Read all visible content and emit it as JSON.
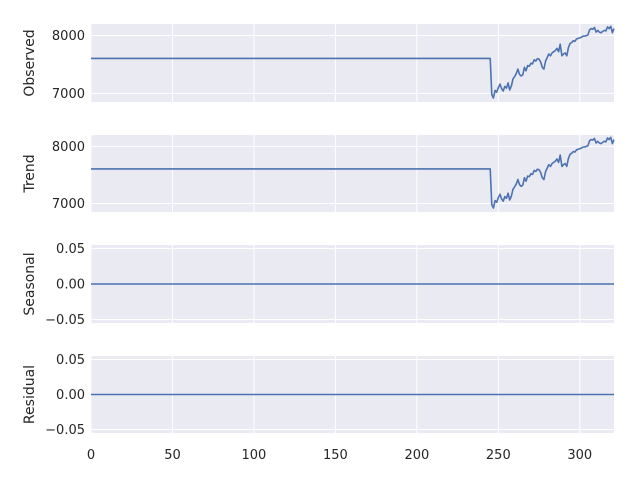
{
  "chart_data": {
    "type": "line",
    "style": {
      "panel_bg": "#eaeaf2",
      "grid": "#ffffff",
      "line": "#4c72b0",
      "text": "#262626"
    },
    "xlim": [
      0,
      321
    ],
    "x_ticks": [
      0,
      50,
      100,
      150,
      200,
      250,
      300
    ],
    "panels": [
      {
        "ylabel": "Observed",
        "ylim": [
          6850,
          8200
        ],
        "y_ticks": [
          7000,
          8000
        ],
        "series": {
          "x": [
            0,
            245,
            246,
            247,
            248,
            249,
            250,
            251,
            252,
            253,
            254,
            255,
            256,
            257,
            258,
            259,
            260,
            261,
            262,
            263,
            264,
            265,
            266,
            267,
            268,
            269,
            270,
            271,
            272,
            273,
            274,
            275,
            276,
            277,
            278,
            279,
            280,
            281,
            282,
            283,
            284,
            285,
            286,
            287,
            288,
            289,
            290,
            291,
            292,
            293,
            294,
            295,
            296,
            297,
            298,
            299,
            300,
            301,
            302,
            303,
            304,
            305,
            306,
            307,
            308,
            309,
            310,
            311,
            312,
            313,
            314,
            315,
            316,
            317,
            318,
            319,
            320,
            321
          ],
          "y": [
            7605,
            7605,
            6980,
            6920,
            7050,
            7020,
            7100,
            7160,
            7080,
            7040,
            7120,
            7090,
            7180,
            7060,
            7130,
            7250,
            7290,
            7340,
            7420,
            7330,
            7300,
            7320,
            7450,
            7390,
            7480,
            7470,
            7520,
            7510,
            7580,
            7560,
            7600,
            7590,
            7540,
            7450,
            7420,
            7560,
            7620,
            7680,
            7650,
            7700,
            7720,
            7740,
            7780,
            7720,
            7850,
            7650,
            7680,
            7700,
            7650,
            7790,
            7860,
            7880,
            7910,
            7900,
            7940,
            7950,
            7960,
            7970,
            7990,
            7990,
            8000,
            8010,
            8100,
            8120,
            8110,
            8140,
            8060,
            8090,
            8060,
            8050,
            8070,
            8090,
            8080,
            8150,
            8120,
            8160,
            8050,
            8120
          ]
        }
      },
      {
        "ylabel": "Trend",
        "ylim": [
          6850,
          8200
        ],
        "y_ticks": [
          7000,
          8000
        ],
        "series": {
          "x": [
            0,
            245,
            246,
            247,
            248,
            249,
            250,
            251,
            252,
            253,
            254,
            255,
            256,
            257,
            258,
            259,
            260,
            261,
            262,
            263,
            264,
            265,
            266,
            267,
            268,
            269,
            270,
            271,
            272,
            273,
            274,
            275,
            276,
            277,
            278,
            279,
            280,
            281,
            282,
            283,
            284,
            285,
            286,
            287,
            288,
            289,
            290,
            291,
            292,
            293,
            294,
            295,
            296,
            297,
            298,
            299,
            300,
            301,
            302,
            303,
            304,
            305,
            306,
            307,
            308,
            309,
            310,
            311,
            312,
            313,
            314,
            315,
            316,
            317,
            318,
            319,
            320,
            321
          ],
          "y": [
            7605,
            7605,
            6980,
            6920,
            7050,
            7020,
            7100,
            7160,
            7080,
            7040,
            7120,
            7090,
            7180,
            7060,
            7130,
            7250,
            7290,
            7340,
            7420,
            7330,
            7300,
            7320,
            7450,
            7390,
            7480,
            7470,
            7520,
            7510,
            7580,
            7560,
            7600,
            7590,
            7540,
            7450,
            7420,
            7560,
            7620,
            7680,
            7650,
            7700,
            7720,
            7740,
            7780,
            7720,
            7850,
            7650,
            7680,
            7700,
            7650,
            7790,
            7860,
            7880,
            7910,
            7900,
            7940,
            7950,
            7960,
            7970,
            7990,
            7990,
            8000,
            8010,
            8100,
            8120,
            8110,
            8140,
            8060,
            8090,
            8060,
            8050,
            8070,
            8090,
            8080,
            8150,
            8120,
            8160,
            8050,
            8120
          ]
        }
      },
      {
        "ylabel": "Seasonal",
        "ylim": [
          -0.055,
          0.055
        ],
        "y_ticks": [
          0.05,
          0.0,
          -0.05
        ],
        "y_tick_labels": [
          "0.05",
          "0.00",
          "−0.05"
        ],
        "series": {
          "x": [
            0,
            321
          ],
          "y": [
            0,
            0
          ]
        }
      },
      {
        "ylabel": "Residual",
        "ylim": [
          -0.055,
          0.055
        ],
        "y_ticks": [
          0.05,
          0.0,
          -0.05
        ],
        "y_tick_labels": [
          "0.05",
          "0.00",
          "−0.05"
        ],
        "series": {
          "x": [
            0,
            321
          ],
          "y": [
            0,
            0
          ]
        }
      }
    ]
  }
}
